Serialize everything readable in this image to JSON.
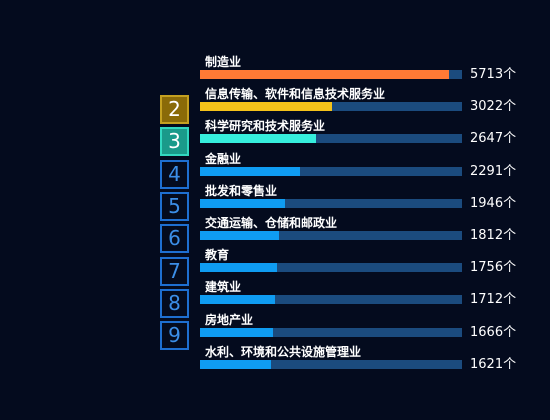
{
  "chart_data": {
    "type": "bar",
    "orientation": "horizontal",
    "unit": "个",
    "xlim": [
      0,
      6000
    ],
    "colors": {
      "track": "#1b4b7e",
      "bar_rank1": "#ff7a35",
      "bar_rank2": "#f5c21a",
      "bar_rank3": "#36eedd",
      "bar_default": "#0f9cf2"
    },
    "ranks": [
      "2",
      "3",
      "4",
      "5",
      "6",
      "7",
      "8",
      "9"
    ],
    "categories": [
      "制造业",
      "信息传输、软件和信息技术服务业",
      "科学研究和技术服务业",
      "金融业",
      "批发和零售业",
      "交通运输、仓储和邮政业",
      "教育",
      "建筑业",
      "房地产业",
      "水利、环境和公共设施管理业"
    ],
    "values": [
      5713,
      3022,
      2647,
      2291,
      1946,
      1812,
      1756,
      1712,
      1666,
      1621
    ],
    "value_labels": [
      "5713个",
      "3022个",
      "2647个",
      "2291个",
      "1946个",
      "1812个",
      "1756个",
      "1712个",
      "1666个",
      "1621个"
    ]
  }
}
